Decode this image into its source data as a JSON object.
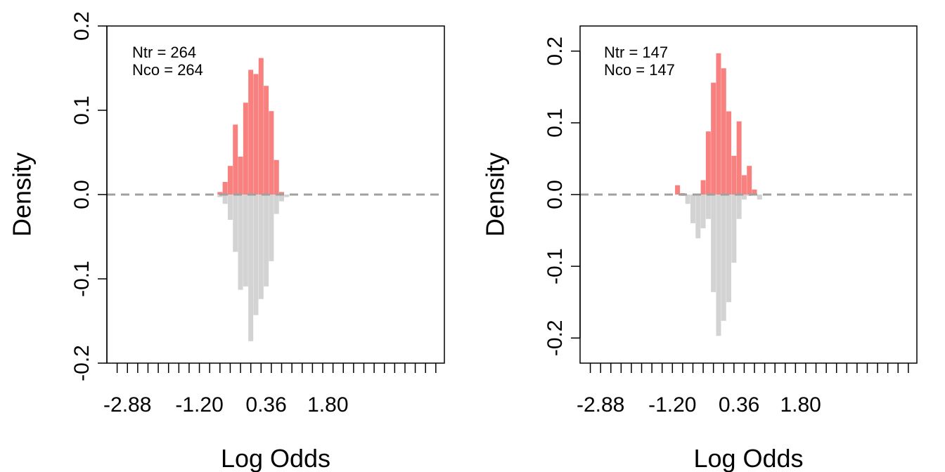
{
  "chart_data": [
    {
      "type": "bar",
      "title": "",
      "xlabel": "Log Odds",
      "ylabel": "Density",
      "xlim": [
        -3.36,
        4.52
      ],
      "ylim": [
        -0.2,
        0.2
      ],
      "x_ticks": [
        -2.88,
        -1.2,
        0.36,
        1.8
      ],
      "x_tick_labels": [
        "-2.88",
        "-1.20",
        "0.36",
        "1.80"
      ],
      "x_minor_ticks": [
        -3.12,
        -2.88,
        -2.64,
        -2.4,
        -2.16,
        -1.92,
        -1.68,
        -1.44,
        -1.2,
        -0.96,
        -0.72,
        -0.48,
        -0.24,
        0.0,
        0.24,
        0.48,
        0.72,
        0.96,
        1.2,
        1.44,
        1.68,
        1.92,
        2.16,
        2.4,
        2.64,
        2.88,
        3.12,
        3.36,
        3.6,
        3.84,
        4.08,
        4.32
      ],
      "y_ticks": [
        -0.2,
        -0.1,
        0.0,
        0.1,
        0.2
      ],
      "y_tick_labels": [
        "-0.2",
        "-0.1",
        "0.0",
        "0.1",
        "0.2"
      ],
      "annotation": [
        "Ntr =  264",
        "Nco =  264"
      ],
      "treated_color": "#F8807E",
      "control_color": "#D3D3D3",
      "baseline_color": "#A0A0A0",
      "bar_width": 0.115,
      "series": [
        {
          "group": "treated",
          "x": [
            -0.72,
            -0.6,
            -0.48,
            -0.36,
            -0.24,
            -0.12,
            0.0,
            0.12,
            0.24,
            0.36,
            0.48,
            0.6,
            0.72
          ],
          "values": [
            0.003,
            0.015,
            0.034,
            0.083,
            0.045,
            0.109,
            0.148,
            0.143,
            0.162,
            0.129,
            0.099,
            0.041,
            0.003
          ]
        },
        {
          "group": "control",
          "x": [
            -0.72,
            -0.6,
            -0.48,
            -0.36,
            -0.24,
            -0.12,
            0.0,
            0.12,
            0.24,
            0.36,
            0.48,
            0.6,
            0.72,
            0.84
          ],
          "values": [
            -0.003,
            -0.011,
            -0.03,
            -0.068,
            -0.113,
            -0.109,
            -0.174,
            -0.143,
            -0.124,
            -0.109,
            -0.079,
            -0.023,
            -0.008,
            -0.003
          ]
        }
      ]
    },
    {
      "type": "bar",
      "title": "",
      "xlabel": "Log Odds",
      "ylabel": "Density",
      "xlim": [
        -3.36,
        4.52
      ],
      "ylim": [
        -0.235,
        0.235
      ],
      "x_ticks": [
        -2.88,
        -1.2,
        0.36,
        1.8
      ],
      "x_tick_labels": [
        "-2.88",
        "-1.20",
        "0.36",
        "1.80"
      ],
      "x_minor_ticks": [
        -3.12,
        -2.88,
        -2.64,
        -2.4,
        -2.16,
        -1.92,
        -1.68,
        -1.44,
        -1.2,
        -0.96,
        -0.72,
        -0.48,
        -0.24,
        0.0,
        0.24,
        0.48,
        0.72,
        0.96,
        1.2,
        1.44,
        1.68,
        1.92,
        2.16,
        2.4,
        2.64,
        2.88,
        3.12,
        3.36,
        3.6,
        3.84,
        4.08,
        4.32
      ],
      "y_ticks": [
        -0.2,
        -0.1,
        0.0,
        0.1,
        0.2
      ],
      "y_tick_labels": [
        "-0.2",
        "-0.1",
        "0.0",
        "0.1",
        "0.2"
      ],
      "annotation": [
        "Ntr =  147",
        "Nco =  147"
      ],
      "treated_color": "#F8807E",
      "control_color": "#D3D3D3",
      "baseline_color": "#A0A0A0",
      "bar_width": 0.115,
      "series": [
        {
          "group": "treated",
          "x": [
            -1.08,
            -0.96,
            -0.84,
            -0.72,
            -0.6,
            -0.48,
            -0.36,
            -0.24,
            -0.12,
            0.0,
            0.12,
            0.24,
            0.36,
            0.48,
            0.6,
            0.72,
            0.84
          ],
          "values": [
            0.013,
            0.002,
            0.0,
            0.0,
            0.0,
            0.02,
            0.088,
            0.156,
            0.197,
            0.176,
            0.116,
            0.054,
            0.102,
            0.027,
            0.04,
            0.007,
            0.0
          ]
        },
        {
          "group": "control",
          "x": [
            -1.08,
            -0.96,
            -0.84,
            -0.72,
            -0.6,
            -0.48,
            -0.36,
            -0.24,
            -0.12,
            0.0,
            0.12,
            0.24,
            0.36,
            0.48,
            0.6,
            0.72,
            0.84
          ],
          "values": [
            0.0,
            -0.002,
            -0.013,
            -0.04,
            -0.061,
            -0.047,
            -0.034,
            -0.136,
            -0.197,
            -0.176,
            -0.15,
            -0.095,
            -0.034,
            -0.007,
            -0.002,
            0.0,
            -0.007
          ]
        }
      ]
    }
  ]
}
